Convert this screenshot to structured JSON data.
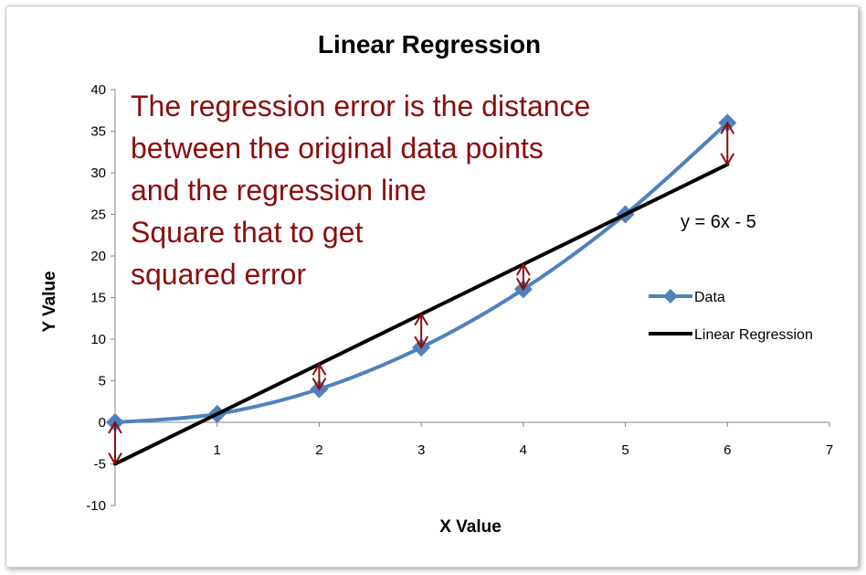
{
  "chart_data": {
    "type": "line",
    "title": "Linear Regression",
    "xlabel": "X Value",
    "ylabel": "Y Value",
    "xlim": [
      0,
      7
    ],
    "ylim": [
      -10,
      40
    ],
    "x_ticks": [
      "1",
      "2",
      "3",
      "4",
      "5",
      "6",
      "7"
    ],
    "y_ticks": [
      "40",
      "35",
      "30",
      "25",
      "20",
      "15",
      "10",
      "5",
      "0",
      "-5",
      "-10"
    ],
    "series": [
      {
        "name": "Data",
        "x": [
          0,
          1,
          2,
          3,
          4,
          5,
          6
        ],
        "y": [
          0,
          1,
          4,
          9,
          16,
          25,
          36
        ],
        "color": "#4f81bd",
        "marker": "diamond",
        "smooth": true
      },
      {
        "name": "Linear Regression",
        "x": [
          0,
          6
        ],
        "y": [
          -5,
          31
        ],
        "color": "#000000",
        "equation": "y = 6x - 5"
      }
    ],
    "error_arrows_color": "#8b0d0d",
    "error_arrows_at_x": [
      0,
      1,
      2,
      3,
      4,
      5,
      6
    ],
    "annotation_lines": [
      "The regression error is the distance",
      "between the original data points",
      "and the regression line",
      "Square that to get",
      "squared error"
    ],
    "legend_position": "right",
    "grid": false
  }
}
